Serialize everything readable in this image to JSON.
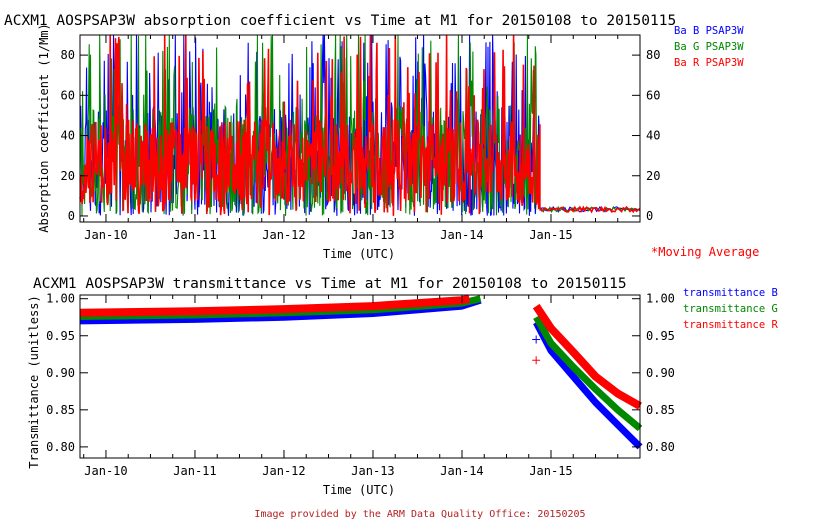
{
  "credit": "Image provided by the ARM Data Quality Office: 20150205",
  "moving_average_label": "*Moving Average",
  "colors": {
    "blue": "#0000ff",
    "green": "#008800",
    "red": "#ff0000"
  },
  "chart_data": [
    {
      "type": "line",
      "title": "ACXM1 AOSPSAP3W absorption coefficient vs Time at M1 for 20150108 to 20150115",
      "xlabel": "Time (UTC)",
      "ylabel": "Absorption coefficient (1/Mm)",
      "x_ticks": [
        "Jan-10",
        "Jan-11",
        "Jan-12",
        "Jan-13",
        "Jan-14",
        "Jan-15"
      ],
      "y_ticks": [
        "0",
        "20",
        "40",
        "60",
        "80"
      ],
      "ylim": [
        -3,
        90
      ],
      "xlim": [
        "2015-01-09 17:00",
        "2015-01-16 00:00"
      ],
      "series": [
        {
          "name": "Ba B PSAP3W",
          "color": "#0000ff",
          "summary": {
            "period1": "2015-01-09 17:00 to 2015-01-14 21:00, values fluctuating between about 0 and 90",
            "period2": "2015-01-14 21:00 to 2015-01-16 00:00, values near 3"
          }
        },
        {
          "name": "Ba G PSAP3W",
          "color": "#008800",
          "summary": {
            "period1": "values fluctuating between about 0 and 90",
            "period2": "values near 3"
          }
        },
        {
          "name": "Ba R PSAP3W",
          "color": "#ff0000",
          "summary": {
            "period1": "dense band between about 5 and 50, spikes to 90",
            "period2": "values near 3"
          }
        }
      ],
      "legend": "right"
    },
    {
      "type": "line",
      "title": "ACXM1 AOSPSAP3W transmittance vs Time at M1 for 20150108 to 20150115",
      "xlabel": "Time (UTC)",
      "ylabel": "Transmittance (unitless)",
      "x_ticks": [
        "Jan-10",
        "Jan-11",
        "Jan-12",
        "Jan-13",
        "Jan-14",
        "Jan-15"
      ],
      "y_ticks": [
        "0.80",
        "0.85",
        "0.90",
        "0.95",
        "1.00"
      ],
      "ylim": [
        0.785,
        1.005
      ],
      "xlim": [
        "2015-01-09 17:00",
        "2015-01-16 00:00"
      ],
      "series": [
        {
          "name": "transmittance B",
          "color": "#0000ff",
          "segments": [
            [
              [
                "2015-01-09 17:00",
                0.97
              ],
              [
                "2015-01-11 00:00",
                0.972
              ],
              [
                "2015-01-12 00:00",
                0.975
              ],
              [
                "2015-01-13 00:00",
                0.98
              ],
              [
                "2015-01-14 00:00",
                0.99
              ],
              [
                "2015-01-14 05:00",
                0.998
              ]
            ],
            [
              [
                "2015-01-14 20:00",
                0.968
              ],
              [
                "2015-01-15 00:00",
                0.93
              ],
              [
                "2015-01-15 06:00",
                0.895
              ],
              [
                "2015-01-15 12:00",
                0.86
              ],
              [
                "2015-01-15 18:00",
                0.83
              ],
              [
                "2015-01-16 00:00",
                0.8
              ]
            ]
          ],
          "outliers": [
            [
              "2015-01-14 20:00",
              0.945
            ]
          ]
        },
        {
          "name": "transmittance G",
          "color": "#008800",
          "segments": [
            [
              [
                "2015-01-09 17:00",
                0.976
              ],
              [
                "2015-01-11 00:00",
                0.978
              ],
              [
                "2015-01-12 00:00",
                0.981
              ],
              [
                "2015-01-13 00:00",
                0.985
              ],
              [
                "2015-01-14 00:00",
                0.994
              ],
              [
                "2015-01-14 05:00",
                1.0
              ]
            ],
            [
              [
                "2015-01-14 20:00",
                0.975
              ],
              [
                "2015-01-15 00:00",
                0.94
              ],
              [
                "2015-01-15 06:00",
                0.908
              ],
              [
                "2015-01-15 12:00",
                0.878
              ],
              [
                "2015-01-15 18:00",
                0.85
              ],
              [
                "2015-01-16 00:00",
                0.825
              ]
            ]
          ]
        },
        {
          "name": "transmittance R",
          "color": "#ff0000",
          "segments": [
            [
              [
                "2015-01-09 17:00",
                0.981
              ],
              [
                "2015-01-11 00:00",
                0.983
              ],
              [
                "2015-01-12 00:00",
                0.986
              ],
              [
                "2015-01-13 00:00",
                0.99
              ],
              [
                "2015-01-14 00:00",
                0.998
              ],
              [
                "2015-01-14 02:00",
                1.0
              ]
            ],
            [
              [
                "2015-01-14 20:00",
                0.99
              ],
              [
                "2015-01-15 00:00",
                0.96
              ],
              [
                "2015-01-15 06:00",
                0.928
              ],
              [
                "2015-01-15 12:00",
                0.895
              ],
              [
                "2015-01-15 18:00",
                0.872
              ],
              [
                "2015-01-16 00:00",
                0.855
              ]
            ]
          ],
          "outliers": [
            [
              "2015-01-14 20:00",
              0.917
            ]
          ]
        }
      ],
      "legend": "right"
    }
  ]
}
